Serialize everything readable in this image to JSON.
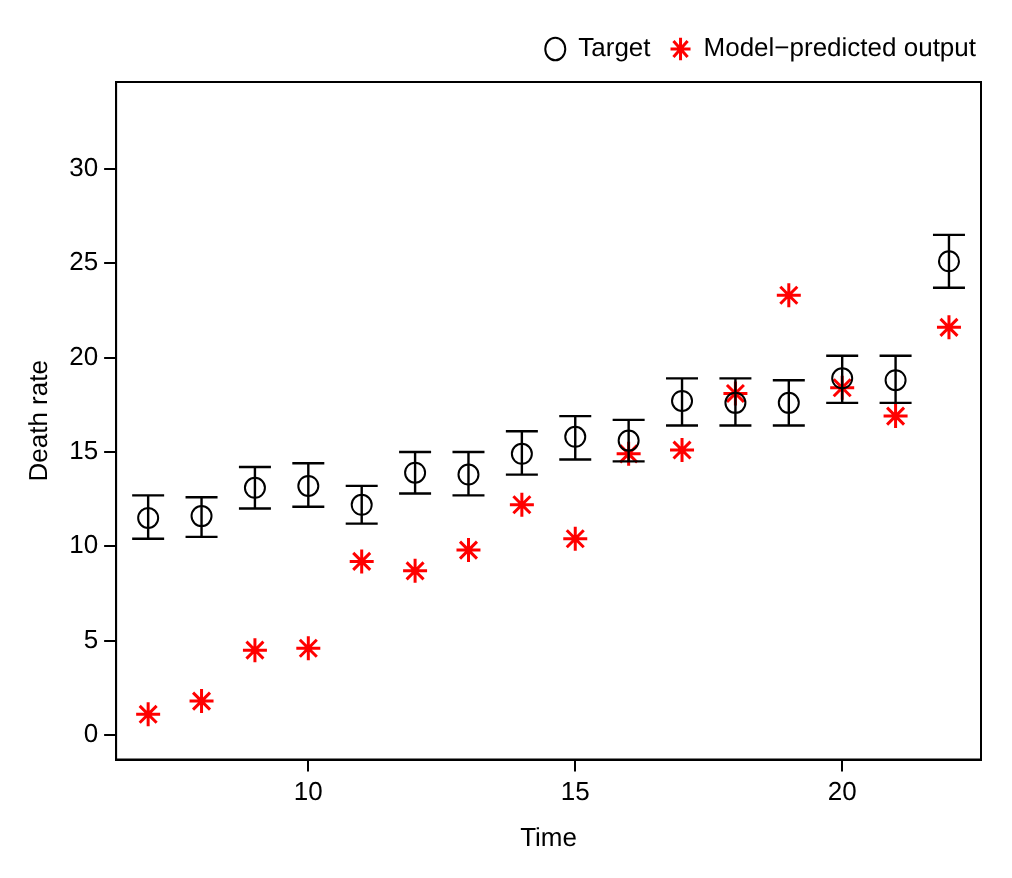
{
  "chart_data": {
    "type": "scatter",
    "xlabel": "Time",
    "ylabel": "Death rate",
    "x": [
      7,
      8,
      9,
      10,
      11,
      12,
      13,
      14,
      15,
      16,
      17,
      18,
      19,
      20,
      21,
      22
    ],
    "series": [
      {
        "name": "Target",
        "color": "#000000",
        "marker": "circle",
        "values": [
          11.5,
          11.6,
          13.1,
          13.2,
          12.2,
          13.9,
          13.8,
          14.9,
          15.8,
          15.6,
          17.7,
          17.6,
          17.6,
          18.9,
          18.8,
          25.1
        ],
        "errors": [
          [
            10.4,
            12.7
          ],
          [
            10.5,
            12.6
          ],
          [
            12.0,
            14.2
          ],
          [
            12.1,
            14.4
          ],
          [
            11.2,
            13.2
          ],
          [
            12.8,
            15.0
          ],
          [
            12.7,
            15.0
          ],
          [
            13.8,
            16.1
          ],
          [
            14.6,
            16.9
          ],
          [
            14.5,
            16.7
          ],
          [
            16.4,
            18.9
          ],
          [
            16.4,
            18.9
          ],
          [
            16.4,
            18.8
          ],
          [
            17.6,
            20.1
          ],
          [
            17.6,
            20.1
          ],
          [
            23.7,
            26.5
          ]
        ]
      },
      {
        "name": "Model−predicted output",
        "color": "#ff0000",
        "marker": "cross",
        "values": [
          1.1,
          1.8,
          4.5,
          4.6,
          9.2,
          8.7,
          9.8,
          12.2,
          10.4,
          14.9,
          15.1,
          18.1,
          23.3,
          18.4,
          16.9,
          21.6
        ]
      }
    ],
    "xlim": [
      6.4,
      22.6
    ],
    "xticks": [
      10,
      15,
      20
    ],
    "ylim": [
      -1.3,
      34.6
    ],
    "yticks": [
      0,
      5,
      10,
      15,
      20,
      25,
      30
    ],
    "grid": false,
    "legend": "top right"
  }
}
